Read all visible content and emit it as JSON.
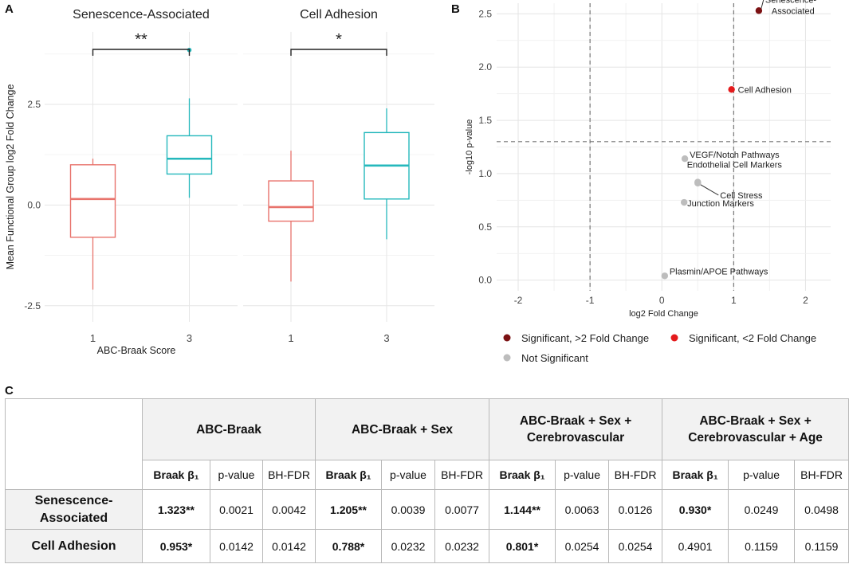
{
  "panels": {
    "a": "A",
    "b": "B",
    "c": "C"
  },
  "chart_data": [
    {
      "type": "box",
      "panel": "A",
      "ylabel": "Mean Functional Group log2 Fold Change",
      "xlabel": "ABC-Braak Score",
      "ylim": [
        -2.9,
        4.3
      ],
      "yticks": [
        -2.5,
        0.0,
        2.5
      ],
      "ytick_labels": [
        "-2.5",
        "0.0",
        "2.5"
      ],
      "group_colors": {
        "1": "#E8736C",
        "3": "#25B8BC"
      },
      "facets": [
        {
          "title": "Senescence-Associated",
          "significance": "**",
          "boxes": [
            {
              "group": "1",
              "whisker_low": -2.1,
              "q1": -0.8,
              "median": 0.15,
              "q3": 1.0,
              "whisker_high": 1.15,
              "outliers": []
            },
            {
              "group": "3",
              "whisker_low": 0.18,
              "q1": 0.77,
              "median": 1.15,
              "q3": 1.72,
              "whisker_high": 2.65,
              "outliers": [
                3.85
              ]
            }
          ]
        },
        {
          "title": "Cell Adhesion",
          "significance": "*",
          "boxes": [
            {
              "group": "1",
              "whisker_low": -1.9,
              "q1": -0.4,
              "median": -0.05,
              "q3": 0.6,
              "whisker_high": 1.35,
              "outliers": []
            },
            {
              "group": "3",
              "whisker_low": -0.85,
              "q1": 0.15,
              "median": 0.98,
              "q3": 1.8,
              "whisker_high": 2.4,
              "outliers": []
            }
          ]
        }
      ]
    },
    {
      "type": "scatter",
      "panel": "B",
      "title": "",
      "xlabel": "log2 Fold Change",
      "ylabel": "-log10 p-value",
      "xlim": [
        -2.3,
        2.35
      ],
      "ylim": [
        -0.1,
        2.6
      ],
      "xticks": [
        -2,
        -1,
        0,
        1,
        2
      ],
      "yticks": [
        0.0,
        0.5,
        1.0,
        1.5,
        2.0,
        2.5
      ],
      "ytick_labels": [
        "0.0",
        "0.5",
        "1.0",
        "1.5",
        "2.0",
        "2.5"
      ],
      "threshold_lines": {
        "x": [
          -1,
          1
        ],
        "y": 1.3
      },
      "points": [
        {
          "label": "Senescence-\nAssociated",
          "x": 1.35,
          "y": 2.53,
          "category": "Significant, >2 Fold Change"
        },
        {
          "label": "Cell Adhesion",
          "x": 0.97,
          "y": 1.79,
          "category": "Significant, <2 Fold Change"
        },
        {
          "label": "VEGF/Notch Pathways",
          "x": 0.32,
          "y": 1.14,
          "category": "Not Significant"
        },
        {
          "label": "Endothelial Cell Markers",
          "x": 0.5,
          "y": 0.92,
          "category": "Not Significant"
        },
        {
          "label": "Cell Stress",
          "x": 0.5,
          "y": 0.91,
          "category": "Not Significant"
        },
        {
          "label": "Junction Markers",
          "x": 0.31,
          "y": 0.73,
          "category": "Not Significant"
        },
        {
          "label": "Plasmin/APOE Pathways",
          "x": 0.04,
          "y": 0.04,
          "category": "Not Significant"
        }
      ],
      "legend": [
        {
          "label": "Significant, >2 Fold Change",
          "color": "#7B1113"
        },
        {
          "label": "Significant, <2 Fold Change",
          "color": "#E41A1C"
        },
        {
          "label": "Not Significant",
          "color": "#BDBDBD"
        }
      ],
      "legend_position": "bottom"
    },
    {
      "type": "table",
      "panel": "C",
      "model_headers": [
        [
          "ABC-Braak"
        ],
        [
          "ABC-Braak + Sex"
        ],
        [
          "ABC-Braak + Sex +",
          "Cerebrovascular"
        ],
        [
          "ABC-Braak + Sex +",
          "Cerebrovascular + Age"
        ]
      ],
      "sub_headers": [
        "Braak β₁",
        "p-value",
        "BH-FDR"
      ],
      "rows": [
        {
          "label": [
            "Senescence-",
            "Associated"
          ],
          "cells": [
            [
              "1.323**",
              "0.0021",
              "0.0042"
            ],
            [
              "1.205**",
              "0.0039",
              "0.0077"
            ],
            [
              "1.144**",
              "0.0063",
              "0.0126"
            ],
            [
              "0.930*",
              "0.0249",
              "0.0498"
            ]
          ],
          "bold_beta": [
            true,
            true,
            true,
            true
          ]
        },
        {
          "label": [
            "Cell Adhesion"
          ],
          "cells": [
            [
              "0.953*",
              "0.0142",
              "0.0142"
            ],
            [
              "0.788*",
              "0.0232",
              "0.0232"
            ],
            [
              "0.801*",
              "0.0254",
              "0.0254"
            ],
            [
              "0.4901",
              "0.1159",
              "0.1159"
            ]
          ],
          "bold_beta": [
            true,
            true,
            true,
            false
          ]
        }
      ]
    }
  ]
}
